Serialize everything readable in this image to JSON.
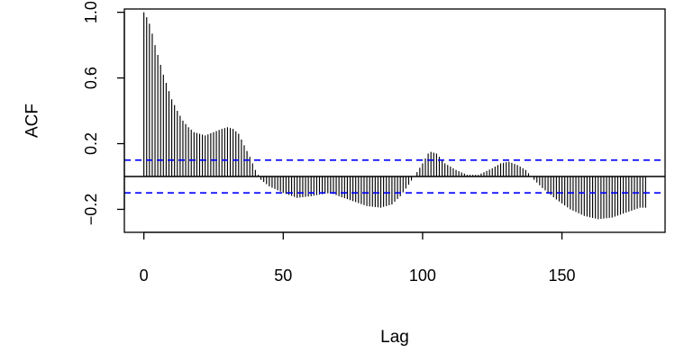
{
  "chart_data": {
    "type": "bar",
    "xlabel": "Lag",
    "ylabel": "ACF",
    "xlim": [
      -7,
      187
    ],
    "ylim": [
      -0.34,
      1.02
    ],
    "x_ticks": [
      0,
      50,
      100,
      150
    ],
    "x_tick_labels": [
      "0",
      "50",
      "100",
      "150"
    ],
    "y_ticks": [
      -0.2,
      0.2,
      0.6,
      1.0
    ],
    "y_tick_labels": [
      "−0.2",
      "0.2",
      "0.6",
      "1.0"
    ],
    "zero_line": 0,
    "confidence_bounds": [
      0.1,
      -0.1
    ],
    "bar_color": "#000000",
    "confidence_color": "#0000ff",
    "grid": false,
    "legend": "none",
    "anchors": [
      [
        0,
        1.0
      ],
      [
        1,
        0.97
      ],
      [
        2,
        0.93
      ],
      [
        3,
        0.87
      ],
      [
        4,
        0.8
      ],
      [
        5,
        0.74
      ],
      [
        6,
        0.68
      ],
      [
        7,
        0.62
      ],
      [
        8,
        0.57
      ],
      [
        9,
        0.52
      ],
      [
        10,
        0.47
      ],
      [
        12,
        0.4
      ],
      [
        14,
        0.34
      ],
      [
        16,
        0.3
      ],
      [
        18,
        0.27
      ],
      [
        20,
        0.26
      ],
      [
        22,
        0.25
      ],
      [
        25,
        0.27
      ],
      [
        28,
        0.29
      ],
      [
        30,
        0.3
      ],
      [
        32,
        0.29
      ],
      [
        34,
        0.26
      ],
      [
        36,
        0.19
      ],
      [
        38,
        0.12
      ],
      [
        40,
        0.04
      ],
      [
        42,
        -0.02
      ],
      [
        45,
        -0.06
      ],
      [
        50,
        -0.1
      ],
      [
        55,
        -0.13
      ],
      [
        60,
        -0.12
      ],
      [
        63,
        -0.11
      ],
      [
        67,
        -0.1
      ],
      [
        70,
        -0.12
      ],
      [
        75,
        -0.15
      ],
      [
        80,
        -0.18
      ],
      [
        85,
        -0.19
      ],
      [
        89,
        -0.17
      ],
      [
        92,
        -0.12
      ],
      [
        95,
        -0.05
      ],
      [
        97,
        0.0
      ],
      [
        100,
        0.08
      ],
      [
        102,
        0.14
      ],
      [
        103,
        0.15
      ],
      [
        105,
        0.14
      ],
      [
        108,
        0.08
      ],
      [
        112,
        0.04
      ],
      [
        116,
        0.01
      ],
      [
        120,
        0.01
      ],
      [
        125,
        0.05
      ],
      [
        128,
        0.08
      ],
      [
        131,
        0.09
      ],
      [
        134,
        0.07
      ],
      [
        137,
        0.04
      ],
      [
        140,
        -0.02
      ],
      [
        143,
        -0.07
      ],
      [
        148,
        -0.14
      ],
      [
        153,
        -0.2
      ],
      [
        158,
        -0.24
      ],
      [
        163,
        -0.26
      ],
      [
        168,
        -0.25
      ],
      [
        173,
        -0.22
      ],
      [
        178,
        -0.19
      ],
      [
        180,
        -0.19
      ]
    ]
  }
}
